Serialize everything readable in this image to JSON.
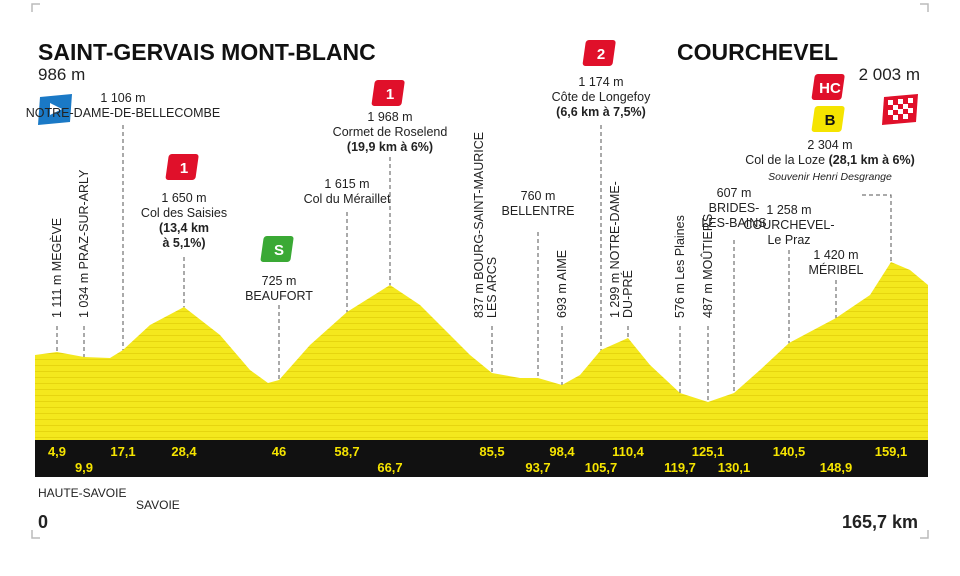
{
  "header": {
    "start_name": "SAINT-GERVAIS MONT-BLANC",
    "start_altitude": "986 m",
    "finish_name": "COURCHEVEL",
    "finish_altitude": "2 003 m"
  },
  "points": [
    {
      "km": "4,9",
      "lines": [
        "1 111 m MEGÈVE"
      ]
    },
    {
      "km": "9,9",
      "lines": [
        "1 034 m PRAZ-SUR-ARLY"
      ]
    },
    {
      "km": "17,1",
      "lines": [
        "1 106 m",
        "NOTRE-DAME-DE-BELLECOMBE"
      ]
    },
    {
      "km": "28,4",
      "badges": [
        "1"
      ],
      "lines": [
        "1 650 m",
        "Col des Saisies",
        "(13,4 km",
        "à 5,1%)"
      ]
    },
    {
      "km": "46",
      "badges": [
        "S"
      ],
      "lines": [
        "725 m",
        "BEAUFORT"
      ]
    },
    {
      "km": "58,7",
      "lines": [
        "1 615 m",
        "Col du Méraillet"
      ]
    },
    {
      "km": "66,7",
      "badges": [
        "1"
      ],
      "lines": [
        "1 968 m",
        "Cormet de Roselend",
        "(19,9 km à 6%)"
      ]
    },
    {
      "km": "85,5",
      "lines": [
        "837 m BOURG-SAINT-MAURICE",
        "LES ARCS"
      ]
    },
    {
      "km": "93,7",
      "lines": [
        "760 m",
        "BELLENTRE"
      ]
    },
    {
      "km": "98,4",
      "lines": [
        "693 m AIME"
      ]
    },
    {
      "km": "105,7",
      "badges": [
        "2"
      ],
      "lines": [
        "1 174 m",
        "Côte de Longefoy",
        "(6,6 km à 7,5%)"
      ]
    },
    {
      "km": "110,4",
      "lines": [
        "1 299 m NOTRE-DAME-",
        "DU-PRÉ"
      ]
    },
    {
      "km": "119,7",
      "lines": [
        "576 m Les Plaines"
      ]
    },
    {
      "km": "125,1",
      "lines": [
        "487 m MOÛTIERS"
      ]
    },
    {
      "km": "130,1",
      "lines": [
        "607 m",
        "BRIDES-",
        "LES-BAINS"
      ]
    },
    {
      "km": "140,5",
      "lines": [
        "1 258 m",
        "COURCHEVEL-",
        "Le Praz"
      ]
    },
    {
      "km": "148,9",
      "lines": [
        "1 420 m",
        "MÉRIBEL"
      ]
    },
    {
      "km": "159,1",
      "badges": [
        "HC",
        "B"
      ],
      "lines": [
        "2 304 m",
        "Col de la Loze",
        "(28,1 km à 6%)",
        "Souvenir Henri Desgrange"
      ]
    }
  ],
  "footer": {
    "regions": [
      "HAUTE-SAVOIE",
      "SAVOIE"
    ],
    "start_km": "0",
    "total_distance": "165,7 km"
  }
}
